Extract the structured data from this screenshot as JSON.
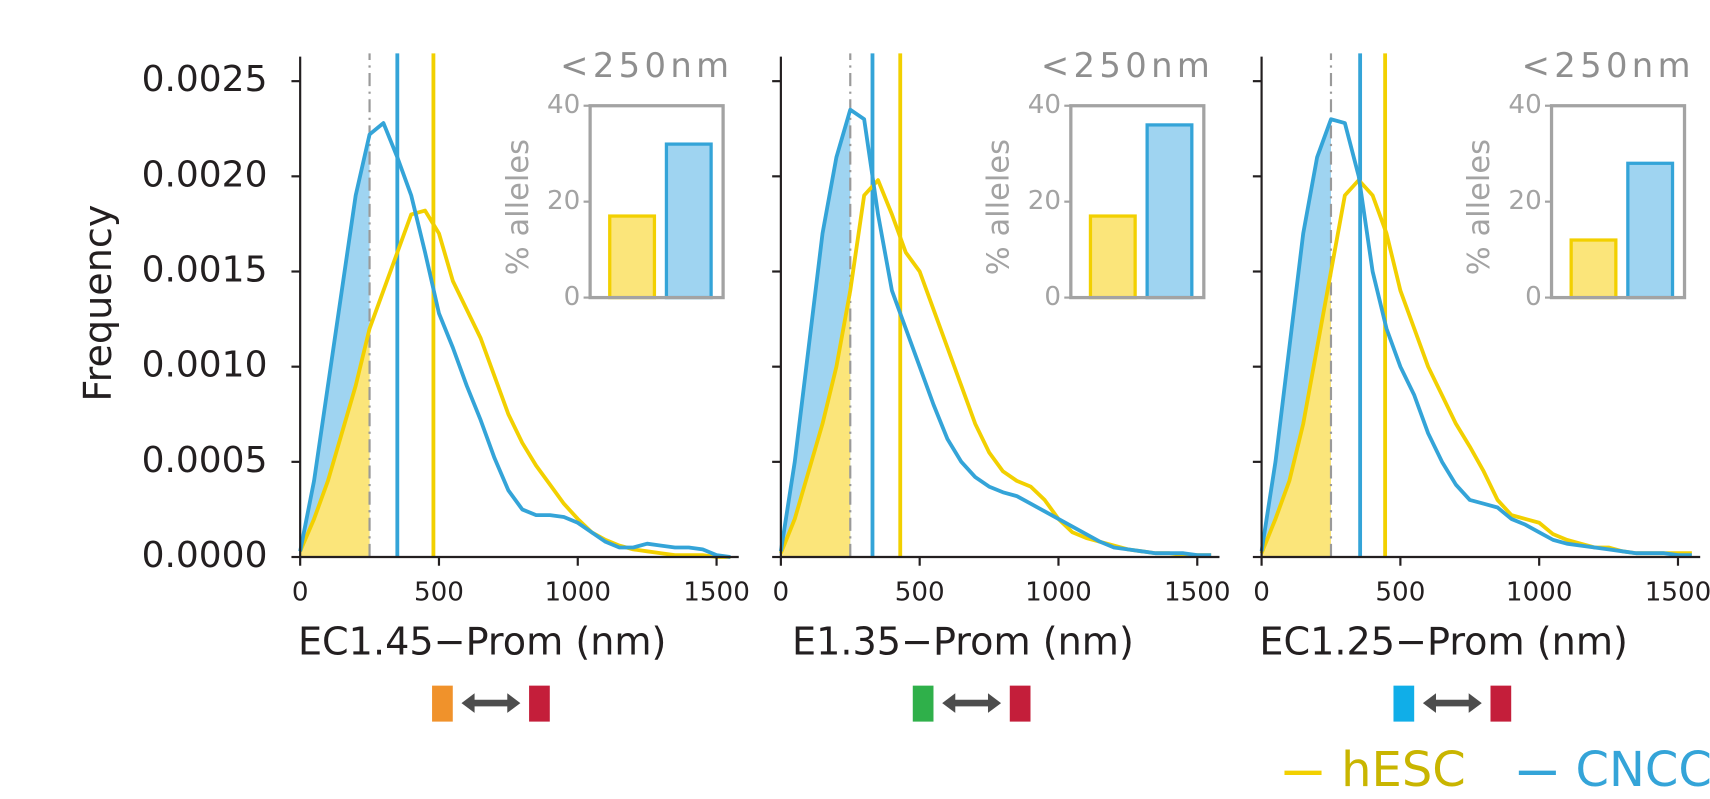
{
  "chart_data": [
    {
      "type": "line",
      "xlabel": "EC1.45−Prom (nm)",
      "ylabel": "Frequency",
      "show_ytick_labels": true,
      "x": [
        0,
        50,
        100,
        150,
        200,
        250,
        300,
        350,
        400,
        450,
        500,
        550,
        600,
        650,
        700,
        750,
        800,
        850,
        900,
        950,
        1000,
        1050,
        1100,
        1150,
        1200,
        1250,
        1300,
        1350,
        1400,
        1450,
        1500,
        1550
      ],
      "xlim": [
        0,
        1580
      ],
      "ylim": [
        0,
        0.0026
      ],
      "xticks": [
        0,
        500,
        1000,
        1500
      ],
      "yticks": [
        {
          "value": 0,
          "label": "0.0000"
        },
        0.0005,
        {
          "value": 0.001,
          "label": "0.0010"
        },
        0.0015,
        {
          "value": 0.002,
          "label": "0.0020"
        },
        0.0025
      ],
      "threshold": 250,
      "markers": [
        "#f0922b",
        "#c41e3a"
      ],
      "series": [
        {
          "name": "hESC",
          "color": "#f2d000",
          "fill": "#fbe57a",
          "mean": 480,
          "values": [
            3e-05,
            0.0002,
            0.0004,
            0.00065,
            0.0009,
            0.0012,
            0.0014,
            0.0016,
            0.0018,
            0.00182,
            0.0017,
            0.00145,
            0.0013,
            0.00115,
            0.00095,
            0.00075,
            0.0006,
            0.00048,
            0.00038,
            0.00028,
            0.0002,
            0.00013,
            9e-05,
            6e-05,
            4e-05,
            3e-05,
            2e-05,
            1e-05,
            1e-05,
            1e-05,
            0,
            0
          ]
        },
        {
          "name": "CNCC",
          "color": "#34a4d8",
          "fill": "#9fd4f1",
          "mean": 350,
          "values": [
            3e-05,
            0.0004,
            0.0009,
            0.0014,
            0.0019,
            0.00222,
            0.00228,
            0.0021,
            0.0019,
            0.0016,
            0.00128,
            0.0011,
            0.0009,
            0.00072,
            0.00052,
            0.00035,
            0.00025,
            0.00022,
            0.00022,
            0.00021,
            0.00018,
            0.00013,
            8e-05,
            5e-05,
            5e-05,
            7e-05,
            6e-05,
            5e-05,
            5e-05,
            4e-05,
            1e-05,
            0
          ]
        }
      ],
      "inset": {
        "type": "bar",
        "title": "<250nm",
        "ylabel": "% alleles",
        "values": [
          17,
          32
        ],
        "ylim": [
          0,
          40
        ],
        "yticks": [
          0,
          20,
          40
        ]
      }
    },
    {
      "type": "line",
      "xlabel": "E1.35−Prom (nm)",
      "show_ytick_labels": false,
      "x": [
        0,
        50,
        100,
        150,
        200,
        250,
        300,
        350,
        400,
        450,
        500,
        550,
        600,
        650,
        700,
        750,
        800,
        850,
        900,
        950,
        1000,
        1050,
        1100,
        1150,
        1200,
        1250,
        1300,
        1350,
        1400,
        1450,
        1500,
        1550
      ],
      "xlim": [
        0,
        1580
      ],
      "ylim": [
        0,
        0.0026
      ],
      "xticks": [
        0,
        500,
        1000,
        1500
      ],
      "yticks": [
        0,
        0.0005,
        0.001,
        0.0015,
        0.002,
        0.0025
      ],
      "threshold": 250,
      "markers": [
        "#2fb04a",
        "#c41e3a"
      ],
      "series": [
        {
          "name": "hESC",
          "color": "#f2d000",
          "fill": "#fbe57a",
          "mean": 430,
          "values": [
            2e-05,
            0.0002,
            0.00045,
            0.0007,
            0.001,
            0.0014,
            0.0019,
            0.00198,
            0.0018,
            0.0016,
            0.0015,
            0.0013,
            0.0011,
            0.0009,
            0.0007,
            0.00055,
            0.00045,
            0.0004,
            0.00037,
            0.0003,
            0.0002,
            0.00013,
            0.0001,
            8e-05,
            6e-05,
            4e-05,
            3e-05,
            2e-05,
            2e-05,
            1e-05,
            1e-05,
            1e-05
          ]
        },
        {
          "name": "CNCC",
          "color": "#34a4d8",
          "fill": "#9fd4f1",
          "mean": 330,
          "values": [
            3e-05,
            0.0005,
            0.0011,
            0.0017,
            0.0021,
            0.00235,
            0.0023,
            0.0018,
            0.0014,
            0.0012,
            0.001,
            0.0008,
            0.00062,
            0.0005,
            0.00042,
            0.00037,
            0.00034,
            0.00032,
            0.00028,
            0.00024,
            0.0002,
            0.00016,
            0.00012,
            8e-05,
            5e-05,
            4e-05,
            3e-05,
            2e-05,
            2e-05,
            2e-05,
            1e-05,
            1e-05
          ]
        }
      ],
      "inset": {
        "type": "bar",
        "title": "<250nm",
        "ylabel": "% alleles",
        "values": [
          17,
          36
        ],
        "ylim": [
          0,
          40
        ],
        "yticks": [
          0,
          20,
          40
        ]
      }
    },
    {
      "type": "line",
      "xlabel": "EC1.25−Prom (nm)",
      "show_ytick_labels": false,
      "x": [
        0,
        50,
        100,
        150,
        200,
        250,
        300,
        350,
        400,
        450,
        500,
        550,
        600,
        650,
        700,
        750,
        800,
        850,
        900,
        950,
        1000,
        1050,
        1100,
        1150,
        1200,
        1250,
        1300,
        1350,
        1400,
        1450,
        1500,
        1550
      ],
      "xlim": [
        0,
        1580
      ],
      "ylim": [
        0,
        0.0026
      ],
      "xticks": [
        0,
        500,
        1000,
        1500
      ],
      "yticks": [
        0,
        0.0005,
        0.001,
        0.0015,
        0.002,
        0.0025
      ],
      "threshold": 250,
      "markers": [
        "#10aee8",
        "#c41e3a"
      ],
      "series": [
        {
          "name": "hESC",
          "color": "#f2d000",
          "fill": "#fbe57a",
          "mean": 445,
          "values": [
            2e-05,
            0.0002,
            0.0004,
            0.0007,
            0.0011,
            0.0015,
            0.0019,
            0.00198,
            0.0019,
            0.0017,
            0.0014,
            0.0012,
            0.001,
            0.00085,
            0.0007,
            0.00058,
            0.00045,
            0.0003,
            0.00022,
            0.0002,
            0.00018,
            0.00012,
            9e-05,
            7e-05,
            5e-05,
            5e-05,
            3e-05,
            2e-05,
            2e-05,
            2e-05,
            2e-05,
            2e-05
          ]
        },
        {
          "name": "CNCC",
          "color": "#34a4d8",
          "fill": "#9fd4f1",
          "mean": 355,
          "values": [
            3e-05,
            0.0005,
            0.0011,
            0.0017,
            0.0021,
            0.0023,
            0.00228,
            0.002,
            0.0015,
            0.0012,
            0.001,
            0.00085,
            0.00065,
            0.0005,
            0.00038,
            0.0003,
            0.00028,
            0.00026,
            0.0002,
            0.00017,
            0.00013,
            9e-05,
            7e-05,
            6e-05,
            5e-05,
            4e-05,
            3e-05,
            2e-05,
            2e-05,
            2e-05,
            1e-05,
            1e-05
          ]
        }
      ],
      "inset": {
        "type": "bar",
        "title": "<250nm",
        "ylabel": "% alleles",
        "values": [
          12,
          28
        ],
        "ylim": [
          0,
          40
        ],
        "yticks": [
          0,
          20,
          40
        ]
      }
    }
  ]
}
